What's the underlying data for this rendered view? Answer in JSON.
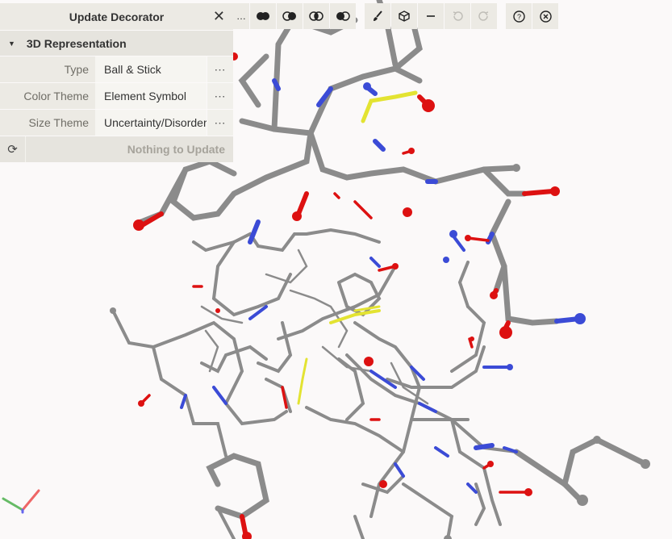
{
  "panel": {
    "title": "Update Decorator",
    "section": "3D Representation",
    "rows": [
      {
        "label": "Type",
        "value": "Ball & Stick"
      },
      {
        "label": "Color Theme",
        "value": "Element Symbol"
      },
      {
        "label": "Size Theme",
        "value": "Uncertainty/Disorder"
      }
    ],
    "more_glyph": "⋯",
    "update_status": "Nothing to Update"
  },
  "toolbar": {
    "truncated_text": "…",
    "icons": [
      "spheres-icon",
      "half-sphere-icon",
      "intersect-icon",
      "subtract-icon",
      "brush-icon",
      "cube-icon",
      "minus-icon",
      "undo-icon",
      "redo-icon",
      "help-icon",
      "close-circle-icon"
    ]
  },
  "colors": {
    "carbon": "#8a8a8a",
    "nitrogen": "#3b4bd6",
    "oxygen": "#dd1111",
    "sulfur": "#e3e332",
    "panel_bg": "#f4f3ee",
    "background": "#fbf9f9"
  }
}
